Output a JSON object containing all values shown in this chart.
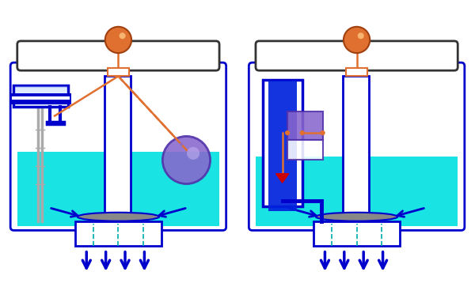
{
  "bg_color": "#ffffff",
  "water_color": "#00e0e0",
  "blue_dark": "#0000cc",
  "blue_med": "#0033cc",
  "orange": "#e07030",
  "purple": "#8866cc",
  "purple_box": "#8855bb",
  "red": "#cc0000",
  "gray": "#888888",
  "gray_light": "#aaaaaa",
  "white": "#ffffff",
  "cyan_dashed": "#00aaaa",
  "figure_width": 6.0,
  "figure_height": 3.82
}
